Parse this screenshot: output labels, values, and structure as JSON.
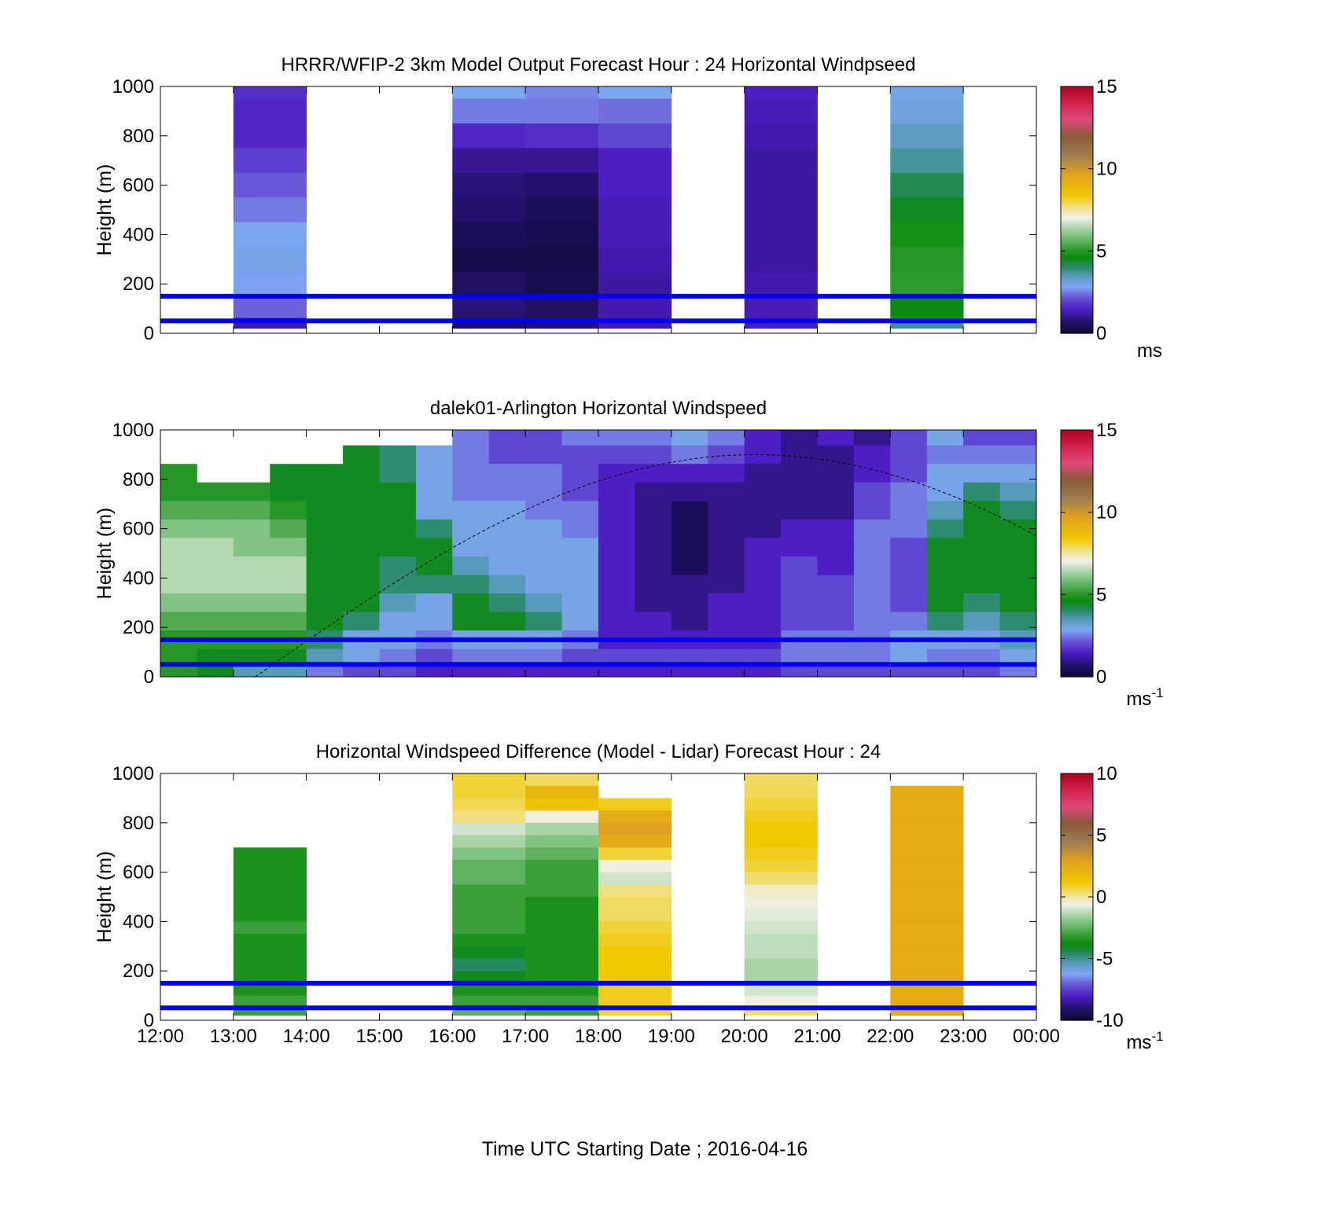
{
  "figure": {
    "xlabel": "Time UTC  Starting Date ; 2016-04-16",
    "guide_line_color": "#0000ee"
  },
  "chart_data": [
    {
      "type": "heatmap",
      "title": "HRRR/WFIP-2 3km Model Output   Forecast Hour : 24 Horizontal Windpseed",
      "ylabel": "Height (m)",
      "xlim": [
        "12:00",
        "00:00"
      ],
      "ylim": [
        0,
        1000
      ],
      "yticks": [
        0,
        200,
        400,
        600,
        800,
        1000
      ],
      "xticks": [
        "12:00",
        "13:00",
        "14:00",
        "15:00",
        "16:00",
        "17:00",
        "18:00",
        "19:00",
        "20:00",
        "21:00",
        "22:00",
        "23:00",
        "00:00"
      ],
      "show_xtick_labels": false,
      "colorbar": {
        "min": 0,
        "max": 15,
        "ticks": [
          0,
          5,
          10,
          15
        ],
        "unit": "ms",
        "unit_sup": ""
      },
      "reference_heights_m": [
        50,
        150
      ],
      "height_levels_m": [
        1000,
        900,
        800,
        700,
        600,
        500,
        400,
        300,
        200,
        100,
        25
      ],
      "columns": [
        {
          "start_hour": 13,
          "values": [
            1.7,
            1.6,
            1.6,
            1.9,
            2.2,
            2.5,
            2.9,
            3.0,
            2.8,
            2.3,
            1.2
          ]
        },
        {
          "start_hour": 16,
          "values": [
            2.9,
            2.5,
            1.6,
            1.1,
            0.8,
            0.7,
            0.5,
            0.3,
            0.6,
            0.8,
            0.6
          ]
        },
        {
          "start_hour": 17,
          "values": [
            2.6,
            2.5,
            1.7,
            1.1,
            0.7,
            0.5,
            0.4,
            0.3,
            0.4,
            0.6,
            0.7
          ]
        },
        {
          "start_hour": 18,
          "values": [
            2.9,
            2.4,
            2.0,
            1.5,
            1.5,
            1.4,
            1.4,
            1.3,
            1.2,
            1.3,
            1.3
          ]
        },
        {
          "start_hour": 20,
          "values": [
            1.5,
            1.4,
            1.3,
            1.2,
            1.2,
            1.2,
            1.2,
            1.2,
            1.3,
            1.4,
            1.4
          ]
        },
        {
          "start_hour": 22,
          "values": [
            3.0,
            3.1,
            3.4,
            3.7,
            4.2,
            4.5,
            4.8,
            5.0,
            5.1,
            4.6,
            3.8
          ]
        }
      ]
    },
    {
      "type": "heatmap",
      "title": "dalek01-Arlington  Horizontal Windspeed",
      "ylabel": "Height (m)",
      "xlim": [
        "12:00",
        "00:00"
      ],
      "ylim": [
        0,
        1000
      ],
      "yticks": [
        0,
        200,
        400,
        600,
        800,
        1000
      ],
      "xticks": [
        "12:00",
        "13:00",
        "14:00",
        "15:00",
        "16:00",
        "17:00",
        "18:00",
        "19:00",
        "20:00",
        "21:00",
        "22:00",
        "23:00",
        "00:00"
      ],
      "show_xtick_labels": false,
      "colorbar": {
        "min": 0,
        "max": 15,
        "ticks": [
          0,
          5,
          10,
          15
        ],
        "unit": "ms",
        "unit_sup": "-1"
      },
      "reference_heights_m": [
        50,
        150
      ],
      "height_levels_m": [
        975,
        900,
        825,
        750,
        675,
        600,
        525,
        450,
        375,
        300,
        225,
        150,
        75,
        25
      ],
      "columns": [
        {
          "start_hour": 12.0,
          "values": [
            null,
            null,
            5.0,
            5.0,
            5.5,
            6.0,
            6.5,
            6.5,
            6.5,
            6.0,
            5.5,
            5.0,
            5.0,
            5.0
          ]
        },
        {
          "start_hour": 12.5,
          "values": [
            null,
            null,
            null,
            5.0,
            5.5,
            6.0,
            6.5,
            6.5,
            6.5,
            6.0,
            5.5,
            5.0,
            4.5,
            4.5
          ]
        },
        {
          "start_hour": 13.0,
          "values": [
            null,
            null,
            null,
            5.0,
            5.5,
            6.0,
            6.0,
            6.5,
            6.5,
            6.0,
            5.5,
            5.0,
            4.5,
            3.5
          ]
        },
        {
          "start_hour": 13.5,
          "values": [
            null,
            null,
            4.5,
            4.5,
            5.0,
            5.5,
            6.0,
            6.5,
            6.5,
            6.0,
            5.5,
            5.0,
            4.5,
            3.5
          ]
        },
        {
          "start_hour": 14.0,
          "values": [
            null,
            null,
            4.5,
            4.5,
            4.5,
            4.5,
            4.5,
            4.5,
            4.5,
            4.5,
            4.5,
            4.0,
            3.5,
            2.5
          ]
        },
        {
          "start_hour": 14.5,
          "values": [
            null,
            4.5,
            4.5,
            4.5,
            4.5,
            4.5,
            4.5,
            4.5,
            4.5,
            4.5,
            4.0,
            3.0,
            3.0,
            2.0
          ]
        },
        {
          "start_hour": 15.0,
          "values": [
            null,
            4.0,
            4.0,
            4.5,
            4.5,
            4.5,
            4.5,
            4.0,
            4.0,
            3.5,
            3.0,
            3.0,
            2.5,
            2.0
          ]
        },
        {
          "start_hour": 15.5,
          "values": [
            null,
            3.0,
            3.0,
            3.0,
            3.0,
            4.0,
            4.5,
            4.5,
            4.0,
            3.0,
            3.0,
            2.5,
            2.0,
            1.5
          ]
        },
        {
          "start_hour": 16.0,
          "values": [
            2.5,
            2.5,
            2.5,
            2.5,
            3.0,
            3.0,
            3.0,
            3.5,
            4.0,
            4.5,
            4.5,
            3.0,
            2.5,
            1.5
          ]
        },
        {
          "start_hour": 16.5,
          "values": [
            2.0,
            2.0,
            2.5,
            2.5,
            3.0,
            3.0,
            3.0,
            3.0,
            3.5,
            4.0,
            4.5,
            3.0,
            2.5,
            1.5
          ]
        },
        {
          "start_hour": 17.0,
          "values": [
            2.0,
            2.0,
            2.5,
            2.5,
            2.5,
            3.0,
            3.0,
            3.0,
            3.0,
            3.5,
            4.0,
            3.0,
            2.5,
            1.5
          ]
        },
        {
          "start_hour": 17.5,
          "values": [
            2.5,
            2.0,
            2.0,
            2.0,
            2.5,
            2.5,
            3.0,
            3.0,
            3.0,
            3.0,
            3.0,
            2.5,
            2.0,
            1.5
          ]
        },
        {
          "start_hour": 18.0,
          "values": [
            2.5,
            2.0,
            1.5,
            1.5,
            1.5,
            1.5,
            1.5,
            1.5,
            1.5,
            1.5,
            1.5,
            1.5,
            2.0,
            1.5
          ]
        },
        {
          "start_hour": 18.5,
          "values": [
            2.5,
            2.0,
            1.5,
            1.0,
            1.0,
            1.0,
            1.0,
            1.0,
            1.0,
            1.0,
            1.5,
            1.5,
            2.0,
            1.5
          ]
        },
        {
          "start_hour": 19.0,
          "values": [
            3.0,
            2.5,
            1.5,
            1.0,
            0.5,
            0.5,
            0.5,
            0.5,
            1.0,
            1.0,
            1.0,
            1.5,
            2.0,
            1.5
          ]
        },
        {
          "start_hour": 19.5,
          "values": [
            2.5,
            2.0,
            1.5,
            1.0,
            1.0,
            1.0,
            1.0,
            1.0,
            1.0,
            1.5,
            1.5,
            1.5,
            2.0,
            1.5
          ]
        },
        {
          "start_hour": 20.0,
          "values": [
            1.5,
            1.5,
            1.0,
            1.0,
            1.0,
            1.0,
            1.5,
            1.5,
            1.5,
            1.5,
            1.5,
            1.5,
            2.0,
            1.5
          ]
        },
        {
          "start_hour": 20.5,
          "values": [
            1.0,
            1.0,
            1.0,
            1.0,
            1.0,
            1.5,
            1.5,
            2.0,
            2.0,
            2.0,
            2.0,
            2.5,
            2.5,
            2.0
          ]
        },
        {
          "start_hour": 21.0,
          "values": [
            1.5,
            1.0,
            1.0,
            1.0,
            1.0,
            1.5,
            1.5,
            1.5,
            2.0,
            2.0,
            2.0,
            2.5,
            2.5,
            2.0
          ]
        },
        {
          "start_hour": 21.5,
          "values": [
            1.0,
            1.5,
            1.5,
            2.0,
            2.0,
            2.5,
            2.5,
            2.5,
            2.5,
            2.5,
            2.5,
            2.5,
            2.5,
            2.0
          ]
        },
        {
          "start_hour": 22.0,
          "values": [
            2.0,
            2.0,
            2.0,
            2.5,
            2.5,
            2.5,
            2.0,
            2.0,
            2.0,
            2.0,
            2.5,
            3.0,
            3.0,
            2.0
          ]
        },
        {
          "start_hour": 22.5,
          "values": [
            3.0,
            2.5,
            3.0,
            3.0,
            3.5,
            4.0,
            4.5,
            4.5,
            4.5,
            4.5,
            4.0,
            3.0,
            2.5,
            2.0
          ]
        },
        {
          "start_hour": 23.0,
          "values": [
            2.0,
            2.5,
            3.0,
            4.0,
            4.5,
            4.5,
            4.5,
            4.5,
            4.5,
            4.0,
            3.5,
            3.0,
            2.5,
            2.0
          ]
        },
        {
          "start_hour": 23.5,
          "values": [
            2.0,
            2.5,
            3.0,
            3.5,
            4.0,
            4.5,
            4.5,
            4.5,
            4.5,
            4.5,
            4.0,
            3.5,
            3.0,
            2.5
          ]
        }
      ]
    },
    {
      "type": "heatmap",
      "title": "Horizontal Windspeed Difference (Model - Lidar) Forecast Hour : 24",
      "ylabel": "Height (m)",
      "xlim": [
        "12:00",
        "00:00"
      ],
      "ylim": [
        0,
        1000
      ],
      "yticks": [
        0,
        200,
        400,
        600,
        800,
        1000
      ],
      "xticks": [
        "12:00",
        "13:00",
        "14:00",
        "15:00",
        "16:00",
        "17:00",
        "18:00",
        "19:00",
        "20:00",
        "21:00",
        "22:00",
        "23:00",
        "00:00"
      ],
      "show_xtick_labels": true,
      "colorbar": {
        "min": -10,
        "max": 10,
        "ticks": [
          -10,
          -5,
          0,
          5,
          10
        ],
        "unit": "ms",
        "unit_sup": "-1"
      },
      "reference_heights_m": [
        50,
        150
      ],
      "height_levels_m": [
        975,
        925,
        875,
        825,
        775,
        725,
        675,
        625,
        575,
        525,
        475,
        425,
        375,
        325,
        275,
        225,
        175,
        125,
        75,
        25
      ],
      "columns": [
        {
          "start_hour": 13,
          "values": [
            null,
            null,
            null,
            null,
            null,
            null,
            -3.5,
            -3.5,
            -3.5,
            -3.5,
            -3.5,
            -3.5,
            -3.0,
            -3.5,
            -3.5,
            -3.5,
            -3.5,
            -3.5,
            -3.0,
            -3.0
          ]
        },
        {
          "start_hour": 16,
          "values": [
            0.8,
            0.8,
            0.6,
            0.3,
            -1.0,
            -1.5,
            -2.0,
            -2.5,
            -2.5,
            -3.0,
            -3.0,
            -3.0,
            -3.0,
            -3.5,
            -4.0,
            -4.5,
            -4.0,
            -3.5,
            -3.0,
            -2.5
          ]
        },
        {
          "start_hour": 17,
          "values": [
            0.5,
            2.0,
            1.5,
            -0.5,
            -1.5,
            -2.0,
            -2.5,
            -3.0,
            -3.0,
            -3.0,
            -3.5,
            -3.5,
            -3.5,
            -3.5,
            -3.5,
            -3.5,
            -3.5,
            -3.5,
            -3.0,
            -3.0
          ]
        },
        {
          "start_hour": 18,
          "values": [
            null,
            null,
            1.0,
            2.5,
            3.0,
            2.5,
            0.8,
            -0.5,
            -1.0,
            0.3,
            0.5,
            0.5,
            0.8,
            1.0,
            1.2,
            1.2,
            1.2,
            1.0,
            1.0,
            0.8
          ]
        },
        {
          "start_hour": 20,
          "values": [
            0.5,
            0.6,
            0.8,
            1.0,
            1.2,
            1.2,
            1.0,
            0.8,
            0.4,
            -0.3,
            -0.5,
            -0.8,
            -1.0,
            -1.2,
            -1.2,
            -1.5,
            -1.5,
            -1.0,
            -0.5,
            0.4
          ]
        },
        {
          "start_hour": 22,
          "values": [
            null,
            2.5,
            2.5,
            2.5,
            2.5,
            2.5,
            2.5,
            2.5,
            2.5,
            2.5,
            2.5,
            2.5,
            2.5,
            2.5,
            2.5,
            2.5,
            2.5,
            2.5,
            2.5,
            2.5
          ]
        }
      ]
    }
  ]
}
